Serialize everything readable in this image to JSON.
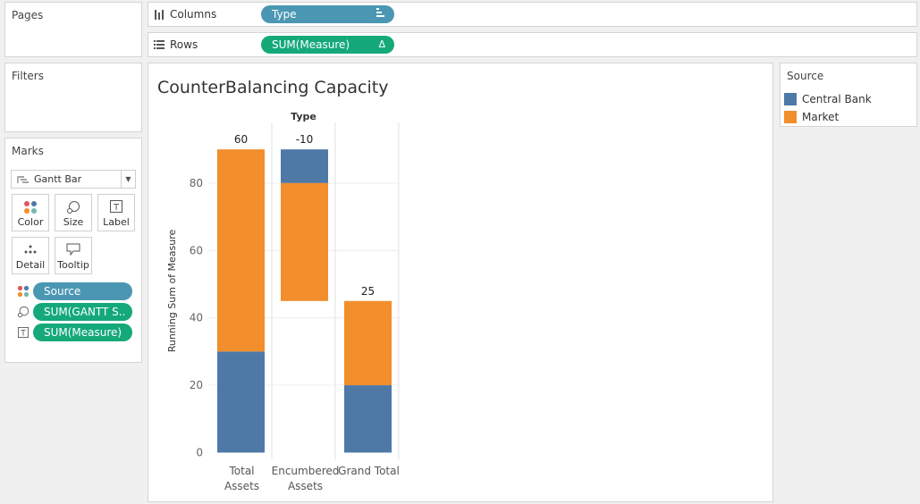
{
  "pages": {
    "title": "Pages"
  },
  "filters": {
    "title": "Filters"
  },
  "marks": {
    "title": "Marks",
    "mark_type": "Gantt Bar",
    "buttons": [
      {
        "label": "Color",
        "icon": "color-dots-icon"
      },
      {
        "label": "Size",
        "icon": "size-icon"
      },
      {
        "label": "Label",
        "icon": "label-icon"
      },
      {
        "label": "Detail",
        "icon": "detail-icon"
      },
      {
        "label": "Tooltip",
        "icon": "tooltip-icon"
      }
    ],
    "fields": [
      {
        "label": "Source",
        "icon": "color-dots-icon",
        "color": "#4b97b3"
      },
      {
        "label": "SUM(GANTT S..",
        "icon": "size-icon",
        "color": "#15a97a"
      },
      {
        "label": "SUM(Measure)",
        "icon": "label-icon",
        "color": "#15a97a"
      }
    ]
  },
  "columns": {
    "label": "Columns",
    "pill": "Type"
  },
  "rows": {
    "label": "Rows",
    "pill": "SUM(Measure)"
  },
  "legend": {
    "title": "Source",
    "items": [
      {
        "label": "Central Bank",
        "color": "#4e79a7"
      },
      {
        "label": "Market",
        "color": "#f28e2b"
      }
    ]
  },
  "chart_data": {
    "type": "bar",
    "title": "CounterBalancing Capacity",
    "column_header": "Type",
    "ylabel": "Running Sum of Measure",
    "ylim": [
      -2,
      98
    ],
    "yticks": [
      0,
      20,
      40,
      60,
      80
    ],
    "categories": [
      "Total Assets",
      "Encumbered Assets",
      "Grand Total"
    ],
    "category_labels": [
      [
        "Total",
        "Assets"
      ],
      [
        "Encumbered",
        "Assets"
      ],
      [
        "Grand Total"
      ]
    ],
    "segments": [
      {
        "category": "Total Assets",
        "source": "Central Bank",
        "from": 0,
        "to": 30
      },
      {
        "category": "Total Assets",
        "source": "Market",
        "from": 30,
        "to": 90
      },
      {
        "category": "Encumbered Assets",
        "source": "Central Bank",
        "from": 80,
        "to": 90
      },
      {
        "category": "Encumbered Assets",
        "source": "Market",
        "from": 45,
        "to": 80
      },
      {
        "category": "Grand Total",
        "source": "Central Bank",
        "from": 0,
        "to": 20
      },
      {
        "category": "Grand Total",
        "source": "Market",
        "from": 20,
        "to": 45
      }
    ],
    "totals": [
      {
        "category": "Total Assets",
        "label": "60",
        "at": 90
      },
      {
        "category": "Encumbered Assets",
        "label": "-10",
        "at": 90
      },
      {
        "category": "Grand Total",
        "label": "25",
        "at": 45
      }
    ],
    "colors": {
      "Central Bank": "#4e79a7",
      "Market": "#f28e2b"
    }
  }
}
